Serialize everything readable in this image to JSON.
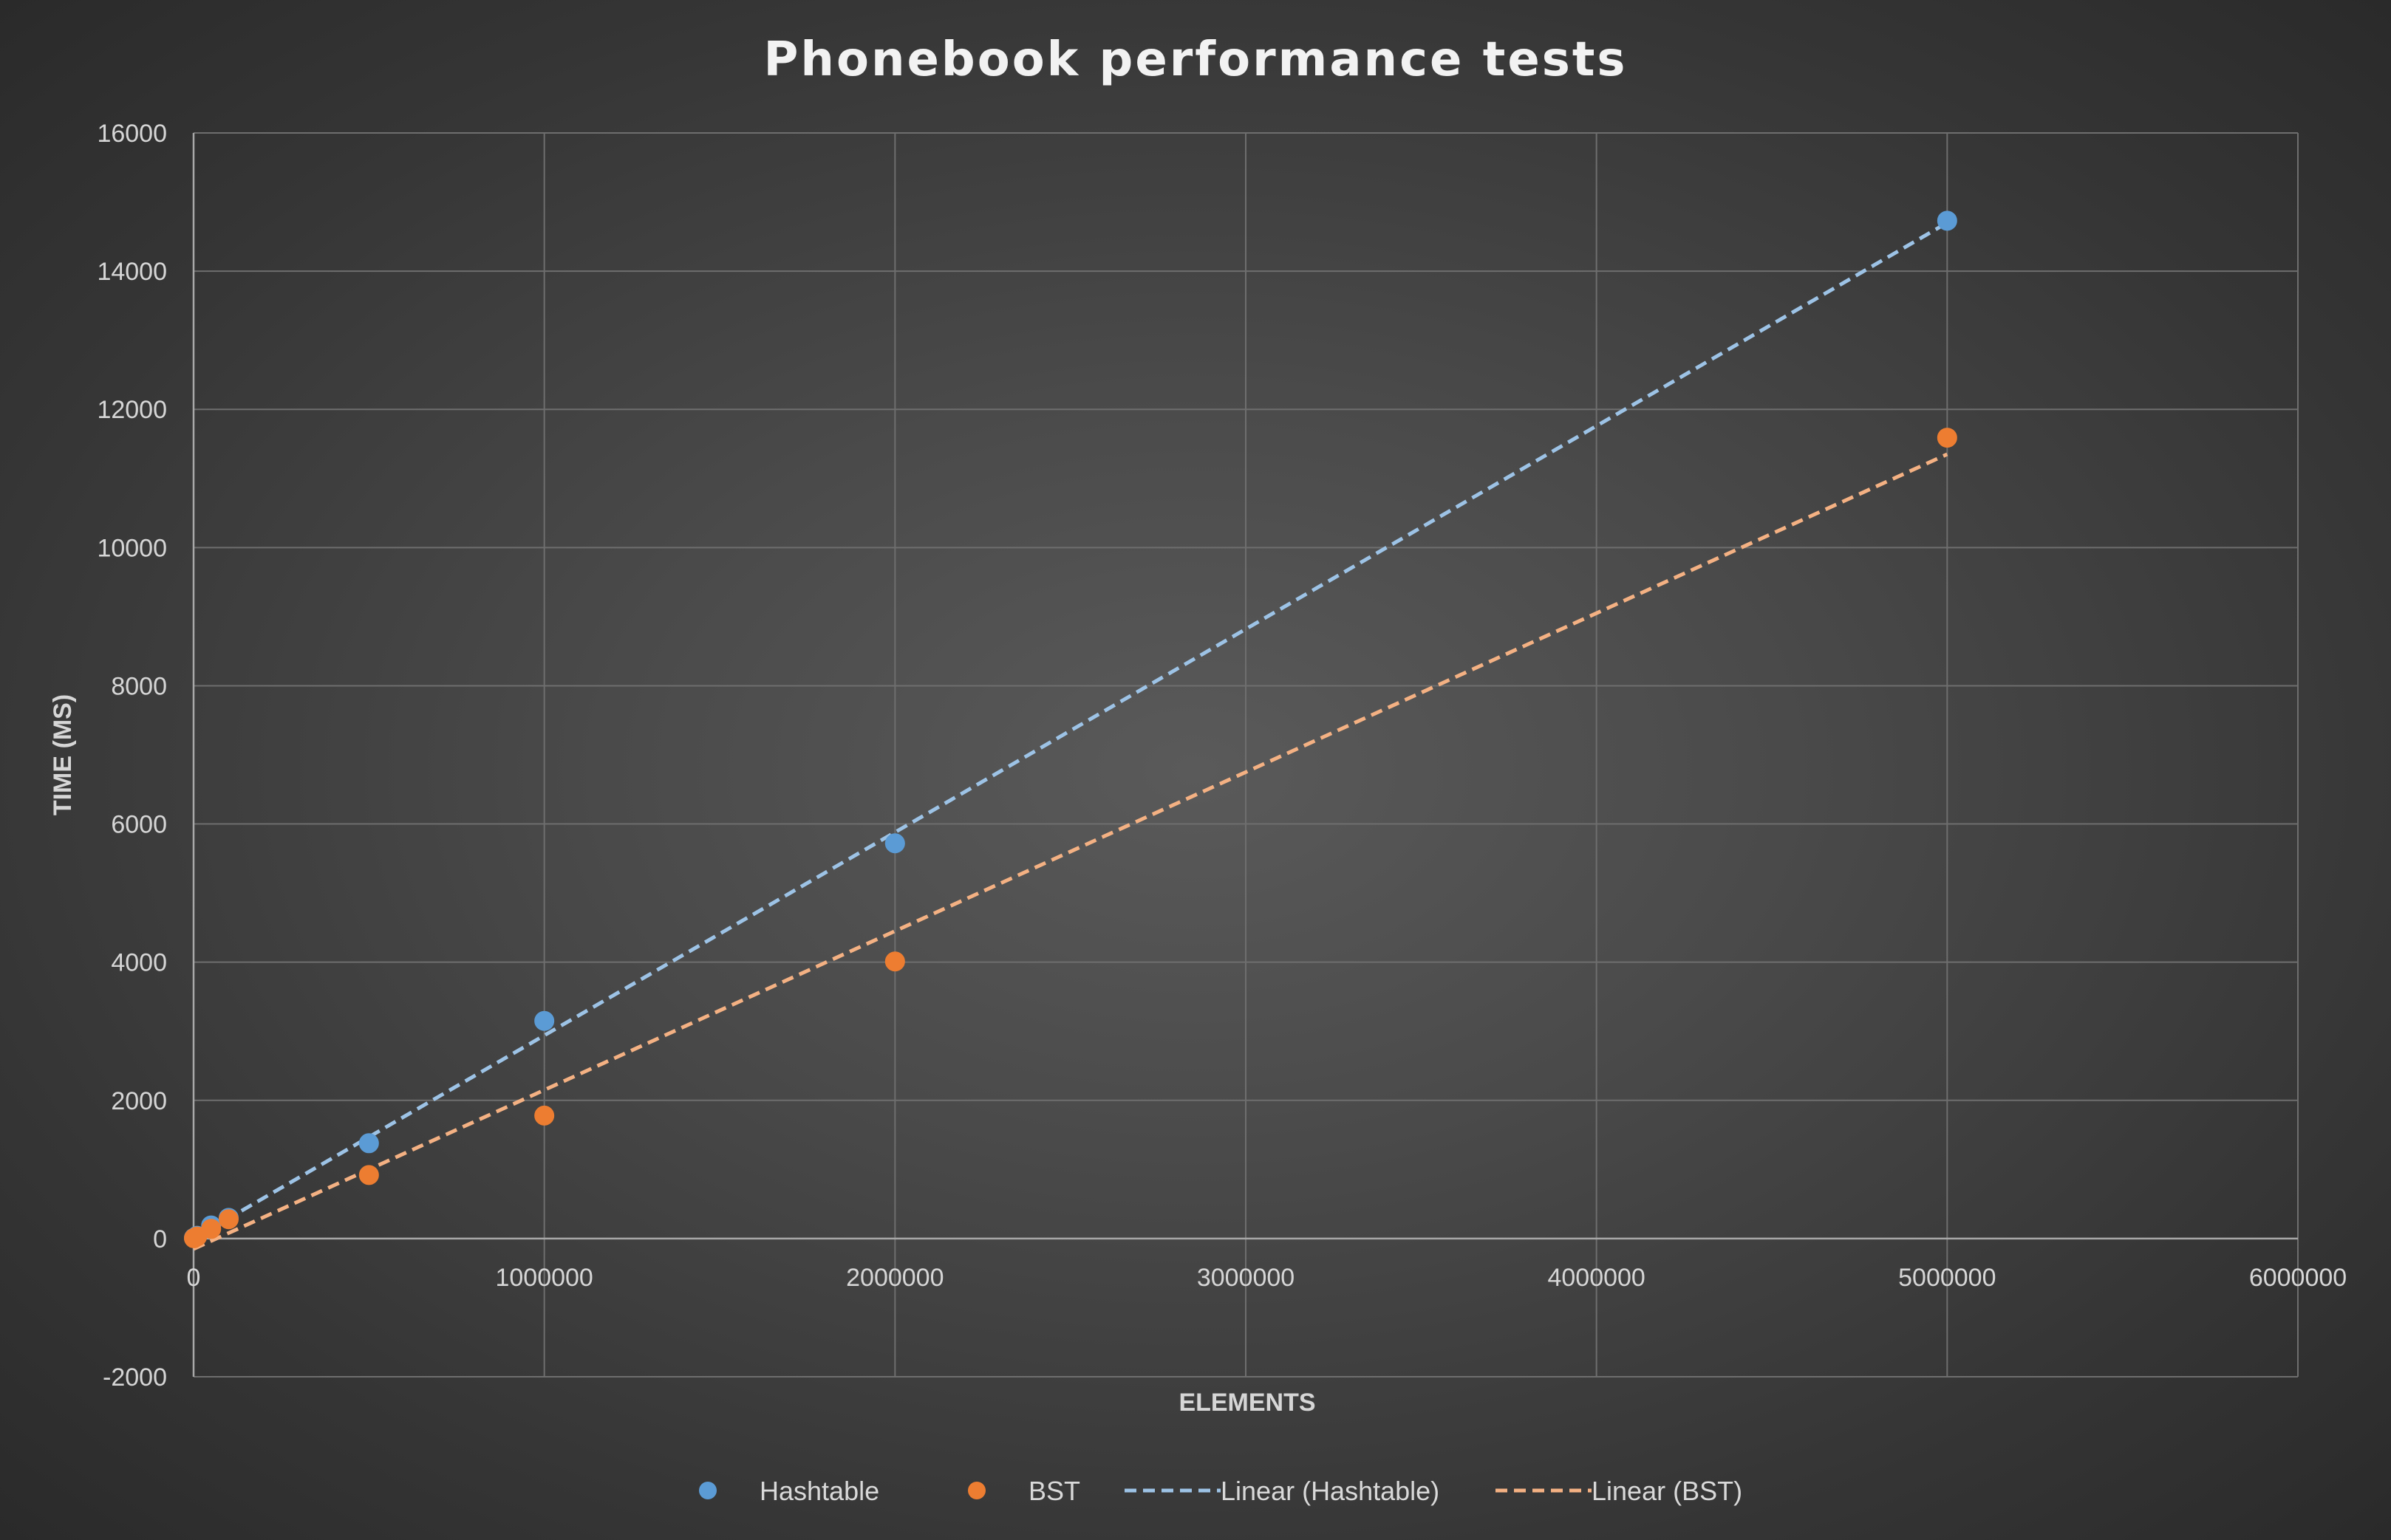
{
  "chart_data": {
    "type": "scatter",
    "title": "Phonebook performance tests",
    "xlabel": "ELEMENTS",
    "ylabel": "TIME (MS)",
    "xlim": [
      0,
      6000000
    ],
    "ylim": [
      -2000,
      16000
    ],
    "x_ticks": [
      0,
      1000000,
      2000000,
      3000000,
      4000000,
      5000000,
      6000000
    ],
    "y_ticks": [
      -2000,
      0,
      2000,
      4000,
      6000,
      8000,
      10000,
      12000,
      14000,
      16000
    ],
    "x_tick_labels": [
      "0",
      "1000000",
      "2000000",
      "3000000",
      "4000000",
      "5000000",
      "6000000"
    ],
    "y_tick_labels": [
      "-2000",
      "0",
      "2000",
      "4000",
      "6000",
      "8000",
      "10000",
      "12000",
      "14000",
      "16000"
    ],
    "grid": true,
    "legend_position": "bottom",
    "series": [
      {
        "name": "Hashtable",
        "color": "#5b9bd5",
        "x": [
          1000,
          10000,
          50000,
          100000,
          500000,
          1000000,
          2000000,
          5000000
        ],
        "y": [
          10,
          40,
          190,
          300,
          1380,
          3150,
          5720,
          14730
        ]
      },
      {
        "name": "BST",
        "color": "#ed7d31",
        "x": [
          1000,
          10000,
          50000,
          100000,
          500000,
          1000000,
          2000000,
          5000000
        ],
        "y": [
          5,
          30,
          140,
          280,
          920,
          1780,
          4010,
          11590
        ]
      }
    ],
    "trendlines": [
      {
        "name": "Linear (Hashtable)",
        "color": "#9dc3e6",
        "x": [
          0,
          5000000
        ],
        "y": [
          0,
          14700
        ]
      },
      {
        "name": "Linear (BST)",
        "color": "#f4b183",
        "x": [
          0,
          5000000
        ],
        "y": [
          -150,
          11350
        ]
      }
    ]
  }
}
